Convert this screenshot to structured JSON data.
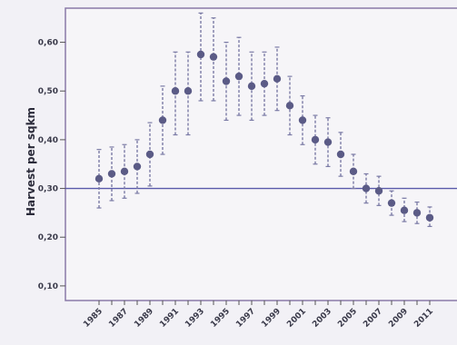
{
  "chart_data": {
    "type": "scatter",
    "title": "",
    "xlabel": "",
    "ylabel": "Harvest per sqkm",
    "ylim": [
      0.07,
      0.67
    ],
    "yticks": [
      "0,10",
      "0,20",
      "0,30",
      "0,40",
      "0,50",
      "0,60"
    ],
    "xticks": [
      "1985",
      "1987",
      "1989",
      "1991",
      "1993",
      "1995",
      "1997",
      "1999",
      "2001",
      "2003",
      "2005",
      "2007",
      "2009",
      "2011"
    ],
    "reference_line": 0.3,
    "grid": false,
    "series": [
      {
        "x": [
          1985,
          1986,
          1987,
          1988,
          1989,
          1990,
          1991,
          1992,
          1993,
          1994,
          1995,
          1996,
          1997,
          1998,
          1999,
          2000,
          2001,
          2002,
          2003,
          2004,
          2005,
          2006,
          2007,
          2008,
          2009,
          2010,
          2011
        ],
        "y": [
          0.32,
          0.33,
          0.335,
          0.345,
          0.37,
          0.44,
          0.5,
          0.5,
          0.575,
          0.57,
          0.52,
          0.53,
          0.51,
          0.515,
          0.525,
          0.47,
          0.44,
          0.4,
          0.395,
          0.37,
          0.335,
          0.3,
          0.295,
          0.27,
          0.255,
          0.25,
          0.24
        ],
        "low": [
          0.26,
          0.275,
          0.28,
          0.29,
          0.305,
          0.37,
          0.41,
          0.41,
          0.48,
          0.48,
          0.44,
          0.45,
          0.44,
          0.45,
          0.46,
          0.41,
          0.39,
          0.35,
          0.345,
          0.325,
          0.3,
          0.27,
          0.265,
          0.245,
          0.232,
          0.228,
          0.222
        ],
        "high": [
          0.38,
          0.385,
          0.39,
          0.4,
          0.435,
          0.51,
          0.58,
          0.58,
          0.66,
          0.65,
          0.6,
          0.61,
          0.58,
          0.58,
          0.59,
          0.53,
          0.49,
          0.45,
          0.445,
          0.415,
          0.37,
          0.33,
          0.325,
          0.295,
          0.28,
          0.272,
          0.262
        ]
      }
    ],
    "colors": {
      "point": "#5b5b86",
      "errorbar": "#7b7ba6",
      "reference": "#5a5aaa",
      "frame": "#8a7aa8"
    }
  }
}
